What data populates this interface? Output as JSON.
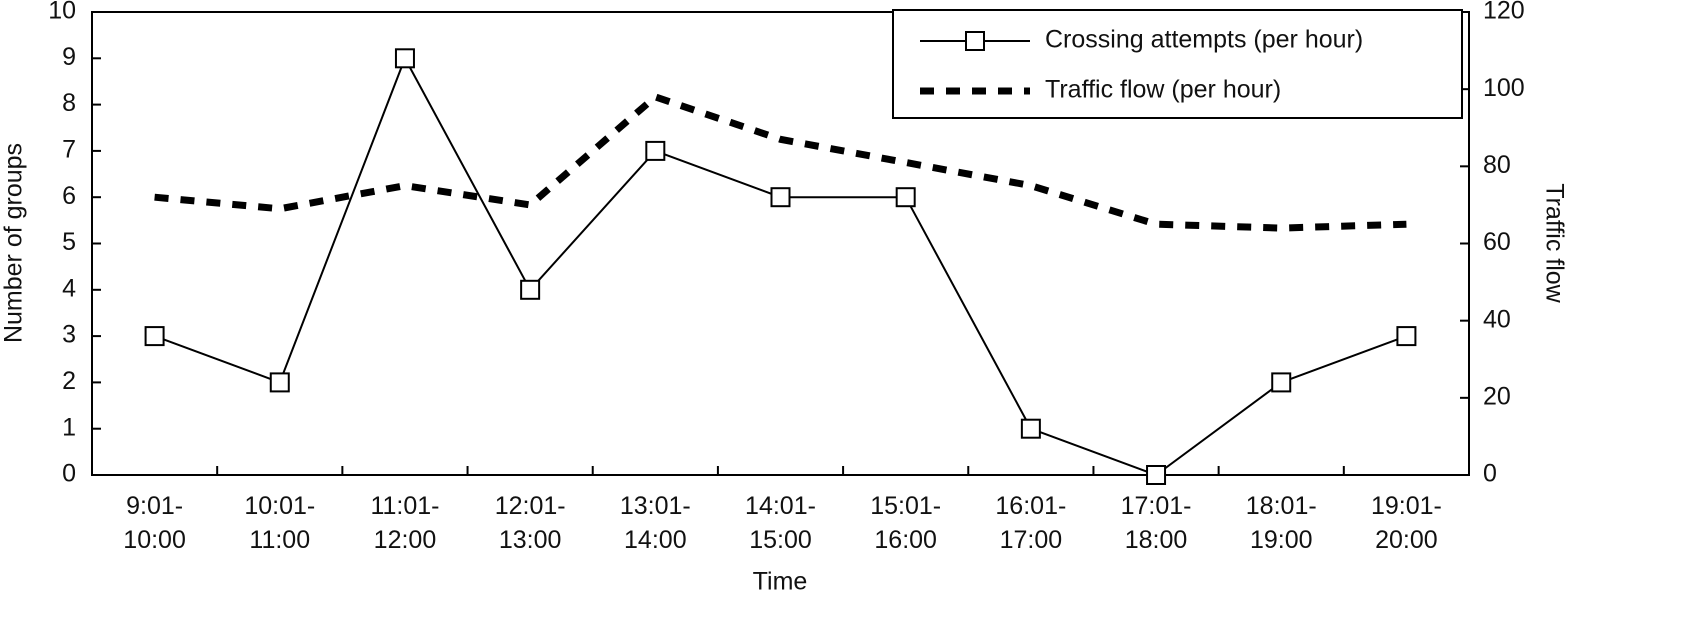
{
  "chart_data": {
    "type": "line",
    "x_label": "Time",
    "y_label": "Number of groups",
    "y2_label": "Traffic flow",
    "categories": [
      "9:01-10:00",
      "10:01-11:00",
      "11:01-12:00",
      "12:01-13:00",
      "13:01-14:00",
      "14:01-15:00",
      "15:01-16:00",
      "16:01-17:00",
      "17:01-18:00",
      "18:01-19:00",
      "19:01-20:00"
    ],
    "series": [
      {
        "name": "Crossing attempts (per hour)",
        "color": "#000000",
        "marker": "square",
        "values": [
          3,
          2,
          9,
          4,
          7,
          6,
          6,
          1,
          0,
          2,
          3
        ]
      },
      {
        "name": "Traffic flow (per hour)",
        "color": "#000000",
        "dashed": true,
        "axis": "y2",
        "values": [
          72,
          69,
          75,
          70,
          98,
          87,
          81,
          75,
          65,
          64,
          65
        ]
      }
    ],
    "ylim": [
      0,
      10
    ],
    "yticks": [
      0,
      1,
      2,
      3,
      4,
      5,
      6,
      7,
      8,
      9,
      10
    ],
    "y2lim": [
      0,
      120
    ],
    "y2ticks": [
      0,
      20,
      40,
      60,
      80,
      100,
      120
    ],
    "legend": "upper right",
    "grid": false
  }
}
